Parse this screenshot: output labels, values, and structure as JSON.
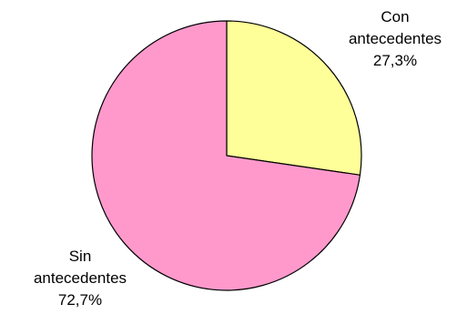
{
  "chart_data": {
    "type": "pie",
    "title": "",
    "slices": [
      {
        "name": "Con antecedentes",
        "label_lines": [
          "Con",
          "antecedentes"
        ],
        "value": 27.3,
        "value_label": "27,3%",
        "color": "#ffff99"
      },
      {
        "name": "Sin antecedentes",
        "label_lines": [
          "Sin",
          "antecedentes"
        ],
        "value": 72.7,
        "value_label": "72,7%",
        "color": "#ff99cc"
      }
    ],
    "start_angle": "12 o'clock",
    "direction": "clockwise",
    "outline_color": "#000000",
    "legend": "none"
  }
}
